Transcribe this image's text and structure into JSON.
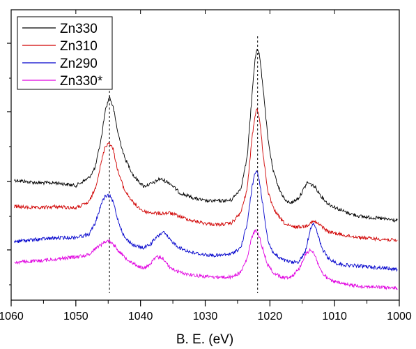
{
  "chart_data": {
    "type": "line",
    "xlabel": "B. E. (eV)",
    "ylabel": "",
    "xlim": [
      1060,
      1000
    ],
    "x_reversed": true,
    "x_ticks": [
      1060,
      1050,
      1040,
      1030,
      1020,
      1010,
      1000
    ],
    "y_ticks_unlabeled": true,
    "reference_lines_x": [
      1044.8,
      1021.9
    ],
    "legend_position": "top-left",
    "grid": false,
    "series": [
      {
        "name": "Zn330",
        "color": "#000000",
        "points": [
          [
            1059.5,
            258
          ],
          [
            1056,
            262
          ],
          [
            1053,
            262
          ],
          [
            1050,
            266
          ],
          [
            1048,
            255
          ],
          [
            1047,
            240
          ],
          [
            1046,
            195
          ],
          [
            1045.5,
            160
          ],
          [
            1044.8,
            138
          ],
          [
            1044.2,
            155
          ],
          [
            1043.5,
            190
          ],
          [
            1042.5,
            225
          ],
          [
            1041,
            253
          ],
          [
            1039.5,
            267
          ],
          [
            1038,
            262
          ],
          [
            1037,
            256
          ],
          [
            1035.5,
            262
          ],
          [
            1034,
            276
          ],
          [
            1032,
            283
          ],
          [
            1030,
            288
          ],
          [
            1028,
            288
          ],
          [
            1026,
            287
          ],
          [
            1024.5,
            270
          ],
          [
            1023.5,
            225
          ],
          [
            1022.8,
            140
          ],
          [
            1022.3,
            85
          ],
          [
            1022,
            68
          ],
          [
            1021.6,
            80
          ],
          [
            1021,
            130
          ],
          [
            1020.3,
            200
          ],
          [
            1019.5,
            245
          ],
          [
            1018.5,
            272
          ],
          [
            1017.5,
            289
          ],
          [
            1016.5,
            290
          ],
          [
            1015.5,
            283
          ],
          [
            1014.2,
            261
          ],
          [
            1013,
            268
          ],
          [
            1012,
            282
          ],
          [
            1011,
            292
          ],
          [
            1009.5,
            299
          ],
          [
            1008,
            305
          ],
          [
            1006,
            310
          ],
          [
            1004,
            312
          ],
          [
            1002,
            314
          ],
          [
            1000.3,
            316
          ]
        ]
      },
      {
        "name": "Zn310",
        "color": "#d00000",
        "points": [
          [
            1059.5,
            296
          ],
          [
            1056,
            298
          ],
          [
            1053,
            296
          ],
          [
            1050,
            298
          ],
          [
            1048,
            290
          ],
          [
            1047,
            270
          ],
          [
            1046,
            230
          ],
          [
            1045.5,
            210
          ],
          [
            1044.8,
            204
          ],
          [
            1044.2,
            215
          ],
          [
            1043.5,
            245
          ],
          [
            1042.5,
            272
          ],
          [
            1041,
            292
          ],
          [
            1039.5,
            303
          ],
          [
            1038,
            305
          ],
          [
            1037,
            306
          ],
          [
            1035.5,
            305
          ],
          [
            1034,
            310
          ],
          [
            1032,
            316
          ],
          [
            1030,
            320
          ],
          [
            1028,
            322
          ],
          [
            1026,
            320
          ],
          [
            1024.5,
            305
          ],
          [
            1023.5,
            270
          ],
          [
            1022.8,
            200
          ],
          [
            1022.3,
            165
          ],
          [
            1022,
            155
          ],
          [
            1021.6,
            170
          ],
          [
            1021,
            225
          ],
          [
            1020.3,
            275
          ],
          [
            1019.5,
            298
          ],
          [
            1018.5,
            312
          ],
          [
            1017.5,
            322
          ],
          [
            1016.5,
            325
          ],
          [
            1015.5,
            325
          ],
          [
            1014.5,
            324
          ],
          [
            1013.5,
            318
          ],
          [
            1013,
            318
          ],
          [
            1012,
            324
          ],
          [
            1011,
            332
          ],
          [
            1009.5,
            335
          ],
          [
            1008,
            338
          ],
          [
            1006,
            340
          ],
          [
            1004,
            342
          ],
          [
            1002,
            343
          ],
          [
            1000.3,
            345
          ]
        ]
      },
      {
        "name": "Zn290",
        "color": "#0000cc",
        "points": [
          [
            1059.5,
            346
          ],
          [
            1056,
            343
          ],
          [
            1053,
            341
          ],
          [
            1050,
            340
          ],
          [
            1048,
            336
          ],
          [
            1047,
            320
          ],
          [
            1046,
            290
          ],
          [
            1045.5,
            282
          ],
          [
            1044.8,
            280
          ],
          [
            1044.2,
            290
          ],
          [
            1043.5,
            315
          ],
          [
            1042.5,
            340
          ],
          [
            1041,
            352
          ],
          [
            1039.5,
            355
          ],
          [
            1038.5,
            350
          ],
          [
            1037.5,
            340
          ],
          [
            1036.5,
            332
          ],
          [
            1035.5,
            343
          ],
          [
            1034,
            355
          ],
          [
            1032,
            362
          ],
          [
            1030,
            365
          ],
          [
            1028,
            366
          ],
          [
            1026,
            364
          ],
          [
            1024.5,
            355
          ],
          [
            1023.5,
            320
          ],
          [
            1022.8,
            270
          ],
          [
            1022.3,
            248
          ],
          [
            1022,
            245
          ],
          [
            1021.6,
            260
          ],
          [
            1021,
            300
          ],
          [
            1020.3,
            345
          ],
          [
            1019.5,
            362
          ],
          [
            1018.5,
            370
          ],
          [
            1017.5,
            374
          ],
          [
            1016.5,
            376
          ],
          [
            1015.5,
            375
          ],
          [
            1014.5,
            360
          ],
          [
            1013.8,
            330
          ],
          [
            1013.3,
            318
          ],
          [
            1012.8,
            330
          ],
          [
            1012,
            355
          ],
          [
            1011,
            370
          ],
          [
            1009.5,
            378
          ],
          [
            1008,
            380
          ],
          [
            1006,
            381
          ],
          [
            1004,
            383
          ],
          [
            1002,
            384
          ],
          [
            1000.3,
            386
          ]
        ]
      },
      {
        "name": "Zn330*",
        "color": "#e000e0",
        "points": [
          [
            1059.5,
            376
          ],
          [
            1056,
            374
          ],
          [
            1053,
            371
          ],
          [
            1050,
            368
          ],
          [
            1048,
            365
          ],
          [
            1047,
            356
          ],
          [
            1046,
            350
          ],
          [
            1045.5,
            346
          ],
          [
            1044.8,
            345
          ],
          [
            1044.2,
            350
          ],
          [
            1043.5,
            358
          ],
          [
            1042.5,
            368
          ],
          [
            1041,
            378
          ],
          [
            1039.5,
            385
          ],
          [
            1038.5,
            378
          ],
          [
            1037.5,
            368
          ],
          [
            1036.5,
            370
          ],
          [
            1035.5,
            383
          ],
          [
            1034,
            390
          ],
          [
            1032,
            394
          ],
          [
            1030,
            396
          ],
          [
            1028,
            397
          ],
          [
            1026,
            397
          ],
          [
            1024.5,
            390
          ],
          [
            1023.5,
            370
          ],
          [
            1022.8,
            340
          ],
          [
            1022.3,
            330
          ],
          [
            1022,
            332
          ],
          [
            1021.6,
            340
          ],
          [
            1021,
            360
          ],
          [
            1020.3,
            380
          ],
          [
            1019.5,
            390
          ],
          [
            1018.5,
            396
          ],
          [
            1017.5,
            398
          ],
          [
            1016.5,
            395
          ],
          [
            1015.5,
            385
          ],
          [
            1014.5,
            365
          ],
          [
            1013.8,
            358
          ],
          [
            1013.3,
            360
          ],
          [
            1012.8,
            372
          ],
          [
            1012,
            390
          ],
          [
            1011,
            400
          ],
          [
            1009.5,
            405
          ],
          [
            1008,
            408
          ],
          [
            1006,
            410
          ],
          [
            1004,
            411
          ],
          [
            1002,
            412
          ],
          [
            1000.3,
            413
          ]
        ]
      }
    ]
  }
}
